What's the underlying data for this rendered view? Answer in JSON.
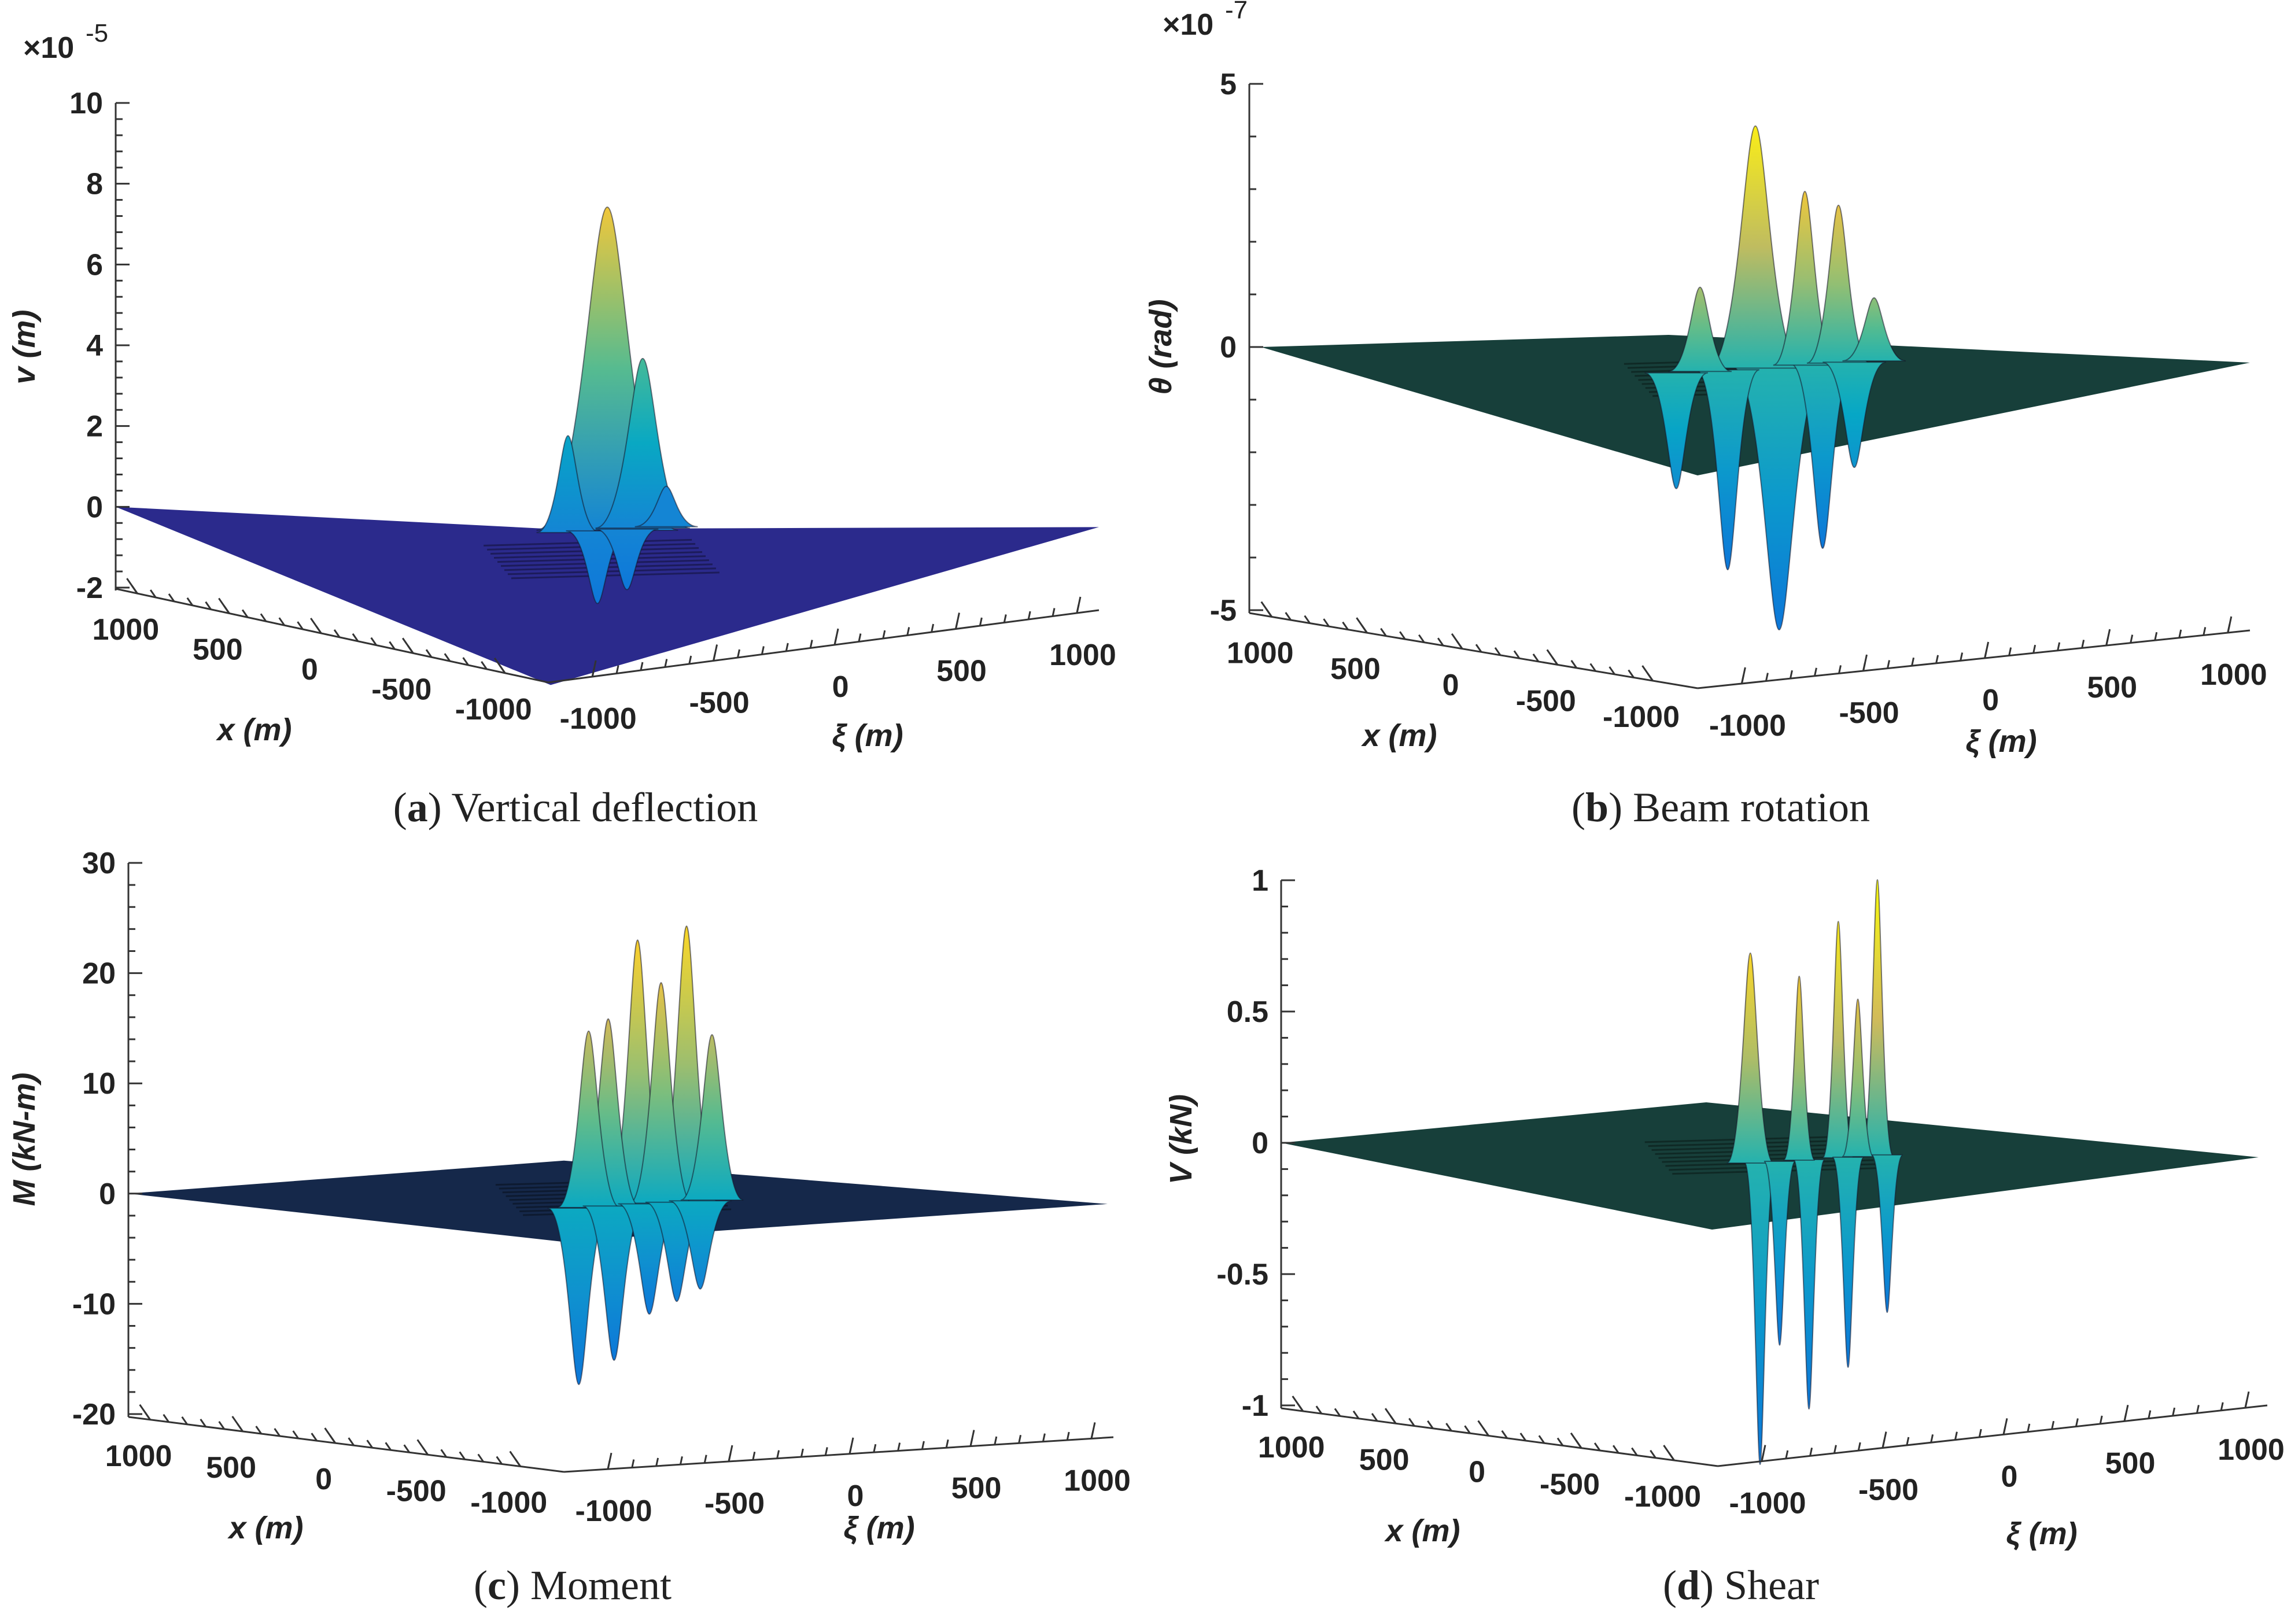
{
  "chart_data": [
    {
      "id": "a",
      "type": "surface3d",
      "caption_letter": "a",
      "caption_text": " Vertical deflection",
      "zlabel": "v (m)",
      "xlabel": "x (m)",
      "ylabel": "ξ (m)",
      "exponent": "-5",
      "zticks": [
        "10",
        "8",
        "6",
        "4",
        "2",
        "0",
        "-2"
      ],
      "zrange": [
        -2,
        10
      ],
      "zvalues": [
        10,
        8,
        6,
        4,
        2,
        0,
        -2
      ],
      "xticks": [
        "1000",
        "500",
        "0",
        "-500",
        "-1000"
      ],
      "yticks": [
        "-1000",
        "-500",
        "0",
        "500",
        "1000"
      ],
      "colormap": "parula",
      "floor_color": "#2b2a8c",
      "peaks": [
        {
          "offset": 0.0,
          "value": 8.0,
          "spread": 0.045
        },
        {
          "offset": 0.18,
          "value": 4.2,
          "spread": 0.03
        },
        {
          "offset": -0.2,
          "value": 2.4,
          "spread": 0.02
        },
        {
          "offset": 0.3,
          "value": 1.0,
          "spread": 0.02
        },
        {
          "offset": -0.05,
          "value": -1.8,
          "spread": 0.02
        },
        {
          "offset": 0.1,
          "value": -1.5,
          "spread": 0.02
        }
      ]
    },
    {
      "id": "b",
      "type": "surface3d",
      "caption_letter": "b",
      "caption_text": " Beam rotation",
      "zlabel": "θ (rad)",
      "xlabel": "x (m)",
      "ylabel": "ξ (m)",
      "exponent": "-7",
      "zticks": [
        "5",
        "0",
        "-5"
      ],
      "zrange": [
        -5,
        5
      ],
      "zvalues": [
        5,
        0,
        -5
      ],
      "xticks": [
        "1000",
        "500",
        "0",
        "-500",
        "-1000"
      ],
      "yticks": [
        "-1000",
        "-500",
        "0",
        "500",
        "1000"
      ],
      "colormap": "parula",
      "floor_color": "#173f3a",
      "peaks": [
        {
          "offset": 0.0,
          "value": 4.6,
          "spread": 0.03
        },
        {
          "offset": 0.25,
          "value": 3.3,
          "spread": 0.02
        },
        {
          "offset": 0.42,
          "value": 3.0,
          "spread": 0.02
        },
        {
          "offset": -0.28,
          "value": 1.6,
          "spread": 0.02
        },
        {
          "offset": 0.6,
          "value": 1.2,
          "spread": 0.02
        },
        {
          "offset": 0.12,
          "value": -5.0,
          "spread": 0.03
        },
        {
          "offset": -0.14,
          "value": -3.8,
          "spread": 0.02
        },
        {
          "offset": 0.34,
          "value": -3.5,
          "spread": 0.02
        },
        {
          "offset": -0.4,
          "value": -2.2,
          "spread": 0.02
        },
        {
          "offset": 0.5,
          "value": -2.0,
          "spread": 0.02
        }
      ]
    },
    {
      "id": "c",
      "type": "surface3d",
      "caption_letter": "c",
      "caption_text": " Moment",
      "zlabel": "M (kN-m)",
      "xlabel": "x (m)",
      "ylabel": "ξ (m)",
      "exponent": "",
      "zticks": [
        "30",
        "20",
        "10",
        "0",
        "-10",
        "-20"
      ],
      "zrange": [
        -20,
        30
      ],
      "zvalues": [
        30,
        20,
        10,
        0,
        -10,
        -20
      ],
      "xticks": [
        "1000",
        "500",
        "0",
        "-500",
        "-1000"
      ],
      "yticks": [
        "-1000",
        "-500",
        "0",
        "500",
        "1000"
      ],
      "colormap": "parula",
      "floor_color": "#15284a",
      "peaks": [
        {
          "offset": 0.1,
          "value": 24.0,
          "spread": 0.02
        },
        {
          "offset": 0.35,
          "value": 25.0,
          "spread": 0.02
        },
        {
          "offset": -0.05,
          "value": 17.0,
          "spread": 0.02
        },
        {
          "offset": 0.22,
          "value": 20.0,
          "spread": 0.02
        },
        {
          "offset": 0.48,
          "value": 15.0,
          "spread": 0.02
        },
        {
          "offset": -0.15,
          "value": 16.0,
          "spread": 0.02
        },
        {
          "offset": -0.2,
          "value": -16.0,
          "spread": 0.02
        },
        {
          "offset": -0.02,
          "value": -14.0,
          "spread": 0.02
        },
        {
          "offset": 0.16,
          "value": -10.0,
          "spread": 0.02
        },
        {
          "offset": 0.3,
          "value": -9.0,
          "spread": 0.02
        },
        {
          "offset": 0.42,
          "value": -8.0,
          "spread": 0.02
        }
      ]
    },
    {
      "id": "d",
      "type": "surface3d",
      "caption_letter": "d",
      "caption_text": " Shear",
      "zlabel": "V (kN)",
      "xlabel": "x (m)",
      "ylabel": "ξ (m)",
      "exponent": "",
      "zticks": [
        "1",
        "0.5",
        "0",
        "-0.5",
        "-1"
      ],
      "zrange": [
        -1,
        1
      ],
      "zvalues": [
        1,
        0.5,
        0,
        -0.5,
        -1
      ],
      "xticks": [
        "1000",
        "500",
        "0",
        "-500",
        "-1000"
      ],
      "yticks": [
        "-1000",
        "-500",
        "0",
        "500",
        "1000"
      ],
      "colormap": "parula",
      "floor_color": "#173f3a",
      "peaks": [
        {
          "offset": 0.55,
          "value": 1.05,
          "spread": 0.01
        },
        {
          "offset": 0.35,
          "value": 0.9,
          "spread": 0.01
        },
        {
          "offset": 0.15,
          "value": 0.7,
          "spread": 0.01
        },
        {
          "offset": -0.1,
          "value": 0.8,
          "spread": 0.015
        },
        {
          "offset": 0.45,
          "value": 0.6,
          "spread": 0.01
        },
        {
          "offset": -0.05,
          "value": -1.15,
          "spread": 0.01
        },
        {
          "offset": 0.2,
          "value": -0.95,
          "spread": 0.01
        },
        {
          "offset": 0.4,
          "value": -0.8,
          "spread": 0.01
        },
        {
          "offset": 0.6,
          "value": -0.6,
          "spread": 0.01
        },
        {
          "offset": 0.05,
          "value": -0.7,
          "spread": 0.01
        }
      ]
    }
  ]
}
